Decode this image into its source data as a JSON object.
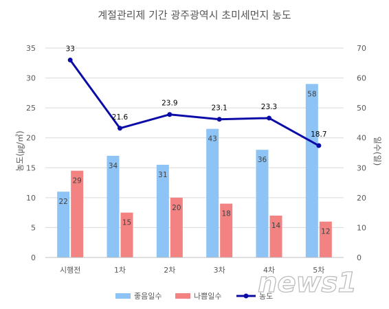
{
  "chart_data": {
    "type": "bar",
    "title": "계절관리제 기간 광주광역시 초미세먼지 농도",
    "categories": [
      "시행전",
      "1차",
      "2차",
      "3차",
      "4차",
      "5차"
    ],
    "series": [
      {
        "name": "좋음일수",
        "type": "bar",
        "axis": "right",
        "color": "#8ec4f5",
        "values": [
          22,
          34,
          31,
          43,
          36,
          58
        ]
      },
      {
        "name": "나쁨일수",
        "type": "bar",
        "axis": "right",
        "color": "#f38383",
        "values": [
          29,
          15,
          20,
          18,
          14,
          12
        ]
      },
      {
        "name": "농도",
        "type": "line",
        "axis": "left",
        "color": "#0b0ba7",
        "values": [
          33,
          21.6,
          23.9,
          23.1,
          23.3,
          18.7
        ]
      }
    ],
    "ylabel_left": "농도(㎍/㎥)",
    "ylabel_right": "일수(일)",
    "ylim_left": [
      0,
      35
    ],
    "ylim_right": [
      0,
      70
    ],
    "yticks_left": [
      "0",
      "5",
      "10",
      "15",
      "20",
      "25",
      "30",
      "35"
    ],
    "yticks_right": [
      "0",
      "10",
      "20",
      "30",
      "40",
      "50",
      "60",
      "70"
    ],
    "grid": true,
    "legend_position": "bottom"
  },
  "watermark": "news1"
}
